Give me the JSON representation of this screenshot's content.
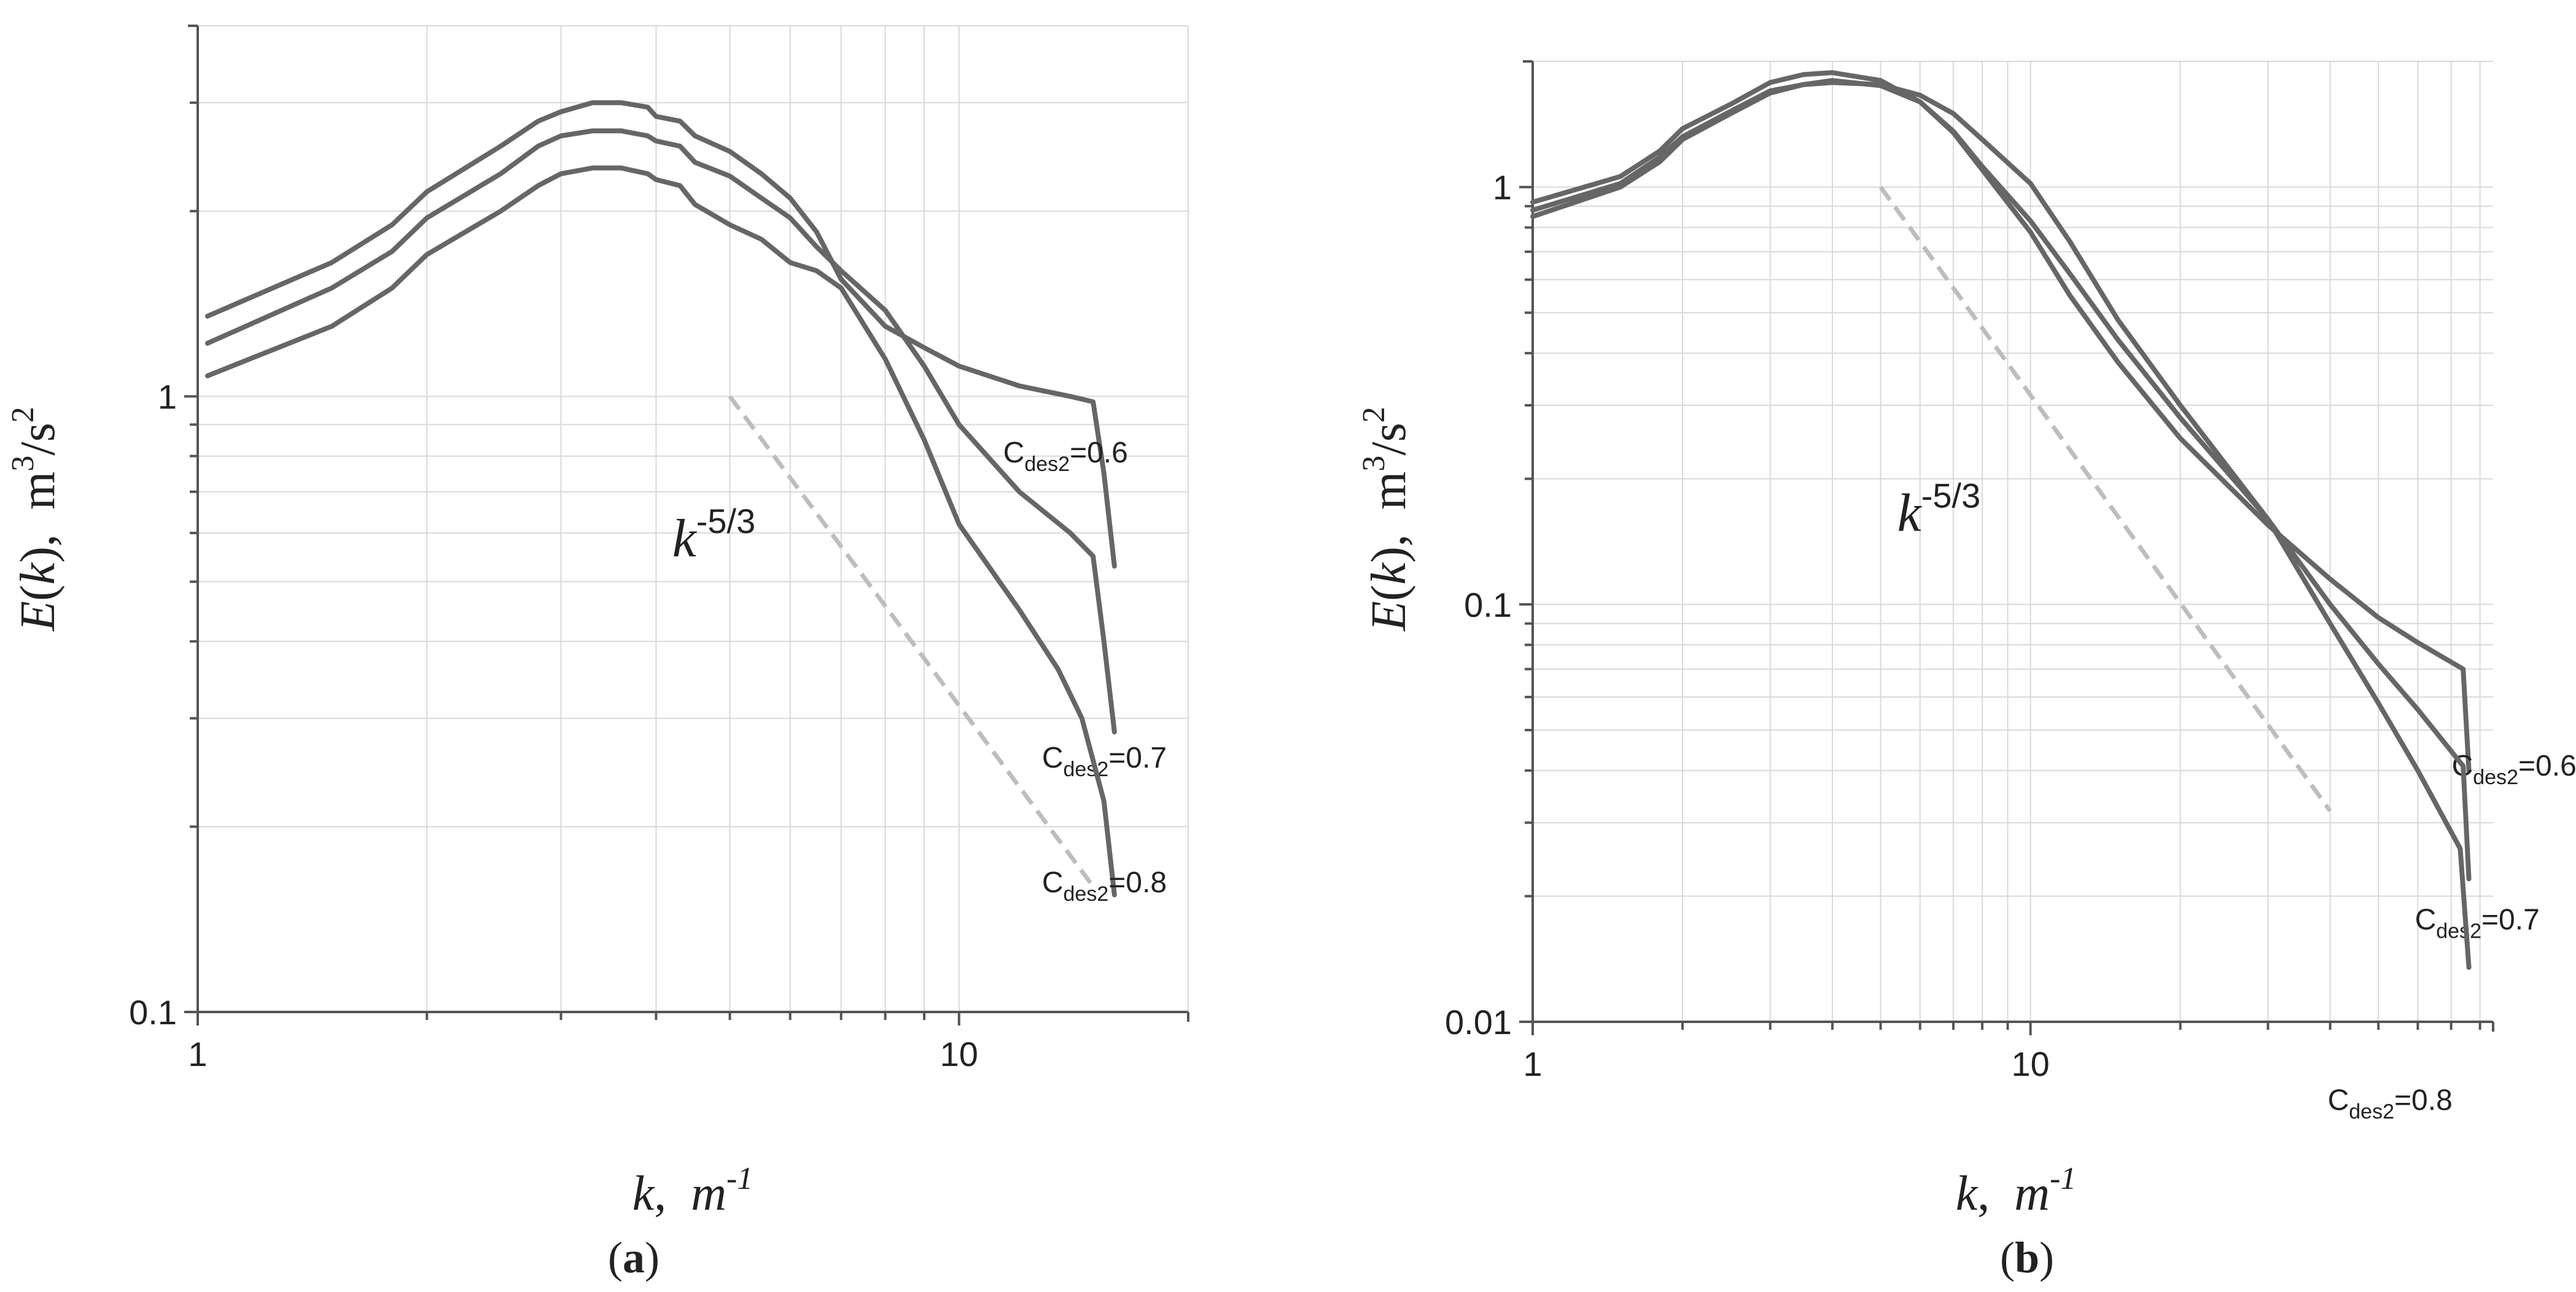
{
  "chart_data": [
    {
      "type": "line",
      "panel_label": "(a)",
      "xscale": "log",
      "yscale": "log",
      "xlim": [
        1,
        20
      ],
      "ylim": [
        0.1,
        4
      ],
      "grid": true,
      "x_ticks": [
        {
          "v": 1,
          "label": "1"
        },
        {
          "v": 10,
          "label": "10"
        }
      ],
      "y_ticks": [
        {
          "v": 0.1,
          "label": "0.1"
        },
        {
          "v": 1,
          "label": "1"
        }
      ],
      "xlabel": {
        "var": "k",
        "sep": ",",
        "unit": "m",
        "exp": "-1"
      },
      "ylabel": {
        "func": "E",
        "var": "k",
        "sep": ",",
        "unit1": "m",
        "exp1": "3",
        "unit2": "/s",
        "exp2": "2"
      },
      "series": [
        {
          "name": "Cdes2=0.6",
          "label": {
            "base": "C",
            "sub": "des2",
            "value": "=0.6"
          },
          "x": [
            1.03,
            1.5,
            1.8,
            2.0,
            2.5,
            2.8,
            3.0,
            3.3,
            3.6,
            3.9,
            4.0,
            4.3,
            4.5,
            5.0,
            5.5,
            6.0,
            6.5,
            7.0,
            8.0,
            9.0,
            10.0,
            12.0,
            14.0,
            15.0,
            15.5,
            16.0
          ],
          "y": [
            1.35,
            1.65,
            1.9,
            2.15,
            2.55,
            2.8,
            2.9,
            3.0,
            3.0,
            2.95,
            2.85,
            2.8,
            2.65,
            2.5,
            2.3,
            2.1,
            1.85,
            1.55,
            1.3,
            1.2,
            1.12,
            1.04,
            1.0,
            0.98,
            0.75,
            0.53
          ]
        },
        {
          "name": "Cdes2=0.7",
          "label": {
            "base": "C",
            "sub": "des2",
            "value": "=0.7"
          },
          "x": [
            1.03,
            1.5,
            1.8,
            2.0,
            2.5,
            2.8,
            3.0,
            3.3,
            3.6,
            3.9,
            4.0,
            4.3,
            4.5,
            5.0,
            5.5,
            6.0,
            6.5,
            7.0,
            8.0,
            9.0,
            10.0,
            12.0,
            14.0,
            15.0,
            15.5,
            16.0
          ],
          "y": [
            1.22,
            1.5,
            1.72,
            1.95,
            2.3,
            2.55,
            2.65,
            2.7,
            2.7,
            2.65,
            2.6,
            2.55,
            2.4,
            2.28,
            2.1,
            1.95,
            1.75,
            1.6,
            1.38,
            1.12,
            0.9,
            0.7,
            0.6,
            0.55,
            0.4,
            0.285
          ]
        },
        {
          "name": "Cdes2=0.8",
          "label": {
            "base": "C",
            "sub": "des2",
            "value": "=0.8"
          },
          "x": [
            1.03,
            1.5,
            1.8,
            2.0,
            2.5,
            2.8,
            3.0,
            3.3,
            3.6,
            3.9,
            4.0,
            4.3,
            4.5,
            5.0,
            5.5,
            6.0,
            6.5,
            7.0,
            8.0,
            9.0,
            10.0,
            12.0,
            13.5,
            14.5,
            15.5,
            16.0
          ],
          "y": [
            1.08,
            1.3,
            1.5,
            1.7,
            2.0,
            2.2,
            2.3,
            2.35,
            2.35,
            2.3,
            2.25,
            2.2,
            2.05,
            1.9,
            1.8,
            1.65,
            1.6,
            1.5,
            1.15,
            0.85,
            0.62,
            0.45,
            0.36,
            0.3,
            0.22,
            0.155
          ]
        }
      ],
      "reference_line": {
        "label": {
          "var": "k",
          "exp": "-5/3"
        },
        "x": [
          5.0,
          15.0
        ],
        "y": [
          1.0,
          0.16
        ]
      }
    },
    {
      "type": "line",
      "panel_label": "(b)",
      "xscale": "log",
      "yscale": "log",
      "xlim": [
        1,
        85
      ],
      "ylim": [
        0.01,
        2
      ],
      "grid": true,
      "x_ticks": [
        {
          "v": 1,
          "label": "1"
        },
        {
          "v": 10,
          "label": "10"
        }
      ],
      "y_ticks": [
        {
          "v": 0.01,
          "label": "0.01"
        },
        {
          "v": 0.1,
          "label": "0.1"
        },
        {
          "v": 1,
          "label": "1"
        }
      ],
      "xlabel": {
        "var": "k",
        "sep": ",",
        "unit": "m",
        "exp": "-1"
      },
      "ylabel": {
        "func": "E",
        "var": "k",
        "sep": ",",
        "unit1": "m",
        "exp1": "3",
        "unit2": "/s",
        "exp2": "2"
      },
      "series": [
        {
          "name": "Cdes2=0.6",
          "label": {
            "base": "C",
            "sub": "des2",
            "value": "=0.6"
          },
          "x": [
            1.0,
            1.5,
            1.8,
            2.0,
            2.5,
            3.0,
            3.5,
            4.0,
            5.0,
            6.0,
            7.0,
            8.0,
            10.0,
            12.0,
            15.0,
            20.0,
            30.0,
            40.0,
            50.0,
            60.0,
            74.0,
            76.0
          ],
          "y": [
            0.85,
            1.0,
            1.15,
            1.3,
            1.5,
            1.68,
            1.76,
            1.8,
            1.75,
            1.6,
            1.35,
            1.1,
            0.78,
            0.55,
            0.38,
            0.25,
            0.155,
            0.115,
            0.093,
            0.081,
            0.07,
            0.04
          ]
        },
        {
          "name": "Cdes2=0.7",
          "label": {
            "base": "C",
            "sub": "des2",
            "value": "=0.7"
          },
          "x": [
            1.0,
            1.5,
            1.8,
            2.0,
            2.5,
            3.0,
            3.5,
            4.0,
            5.0,
            6.0,
            7.0,
            8.0,
            10.0,
            12.0,
            15.0,
            20.0,
            30.0,
            40.0,
            50.0,
            60.0,
            74.0,
            76.0
          ],
          "y": [
            0.88,
            1.02,
            1.18,
            1.32,
            1.52,
            1.7,
            1.76,
            1.78,
            1.76,
            1.66,
            1.5,
            1.3,
            1.02,
            0.74,
            0.48,
            0.3,
            0.16,
            0.1,
            0.072,
            0.056,
            0.041,
            0.022
          ]
        },
        {
          "name": "Cdes2=0.8",
          "label": {
            "base": "C",
            "sub": "des2",
            "value": "=0.8"
          },
          "x": [
            1.0,
            1.5,
            1.8,
            2.0,
            2.5,
            3.0,
            3.5,
            4.0,
            5.0,
            6.0,
            7.0,
            8.0,
            10.0,
            12.0,
            15.0,
            20.0,
            30.0,
            40.0,
            50.0,
            60.0,
            73.0,
            76.0
          ],
          "y": [
            0.92,
            1.06,
            1.22,
            1.38,
            1.58,
            1.78,
            1.86,
            1.88,
            1.8,
            1.6,
            1.36,
            1.12,
            0.83,
            0.62,
            0.43,
            0.28,
            0.16,
            0.09,
            0.058,
            0.04,
            0.026,
            0.0135
          ]
        }
      ],
      "reference_line": {
        "label": {
          "var": "k",
          "exp": "-5/3"
        },
        "x": [
          5.0,
          40.0
        ],
        "y": [
          1.0,
          0.032
        ]
      }
    }
  ]
}
